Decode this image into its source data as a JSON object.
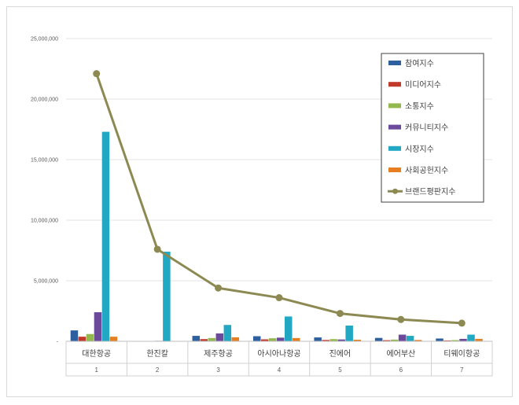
{
  "chart_data": {
    "type": "bar",
    "title": "",
    "xlabel": "",
    "ylabel": "",
    "ylim": [
      0,
      25000000
    ],
    "yticks": [
      0,
      5000000,
      10000000,
      15000000,
      20000000,
      25000000
    ],
    "ytick_labels": [
      "-",
      "5,000,000",
      "10,000,000",
      "15,000,000",
      "20,000,000",
      "25,000,000"
    ],
    "grid": true,
    "legend_position": "top-right",
    "categories": [
      "대한항공",
      "한진칼",
      "제주항공",
      "아시아나항공",
      "진에어",
      "에어부산",
      "티웨이항공"
    ],
    "category_numbers": [
      "1",
      "2",
      "3",
      "4",
      "5",
      "6",
      "7"
    ],
    "series": [
      {
        "name": "참여지수",
        "color": "#2e5f9e",
        "values": [
          900000,
          30000,
          450000,
          420000,
          320000,
          280000,
          230000
        ]
      },
      {
        "name": "미디어지수",
        "color": "#c0392b",
        "values": [
          380000,
          20000,
          180000,
          160000,
          110000,
          90000,
          70000
        ]
      },
      {
        "name": "소통지수",
        "color": "#92b84e",
        "values": [
          600000,
          15000,
          270000,
          250000,
          180000,
          140000,
          100000
        ]
      },
      {
        "name": "커뮤니티지수",
        "color": "#6b4a9b",
        "values": [
          2400000,
          40000,
          650000,
          300000,
          150000,
          550000,
          200000
        ]
      },
      {
        "name": "시장지수",
        "color": "#23a8c3",
        "values": [
          17300000,
          7400000,
          1350000,
          2050000,
          1300000,
          450000,
          550000
        ]
      },
      {
        "name": "사회공헌지수",
        "color": "#e67e22",
        "values": [
          380000,
          20000,
          330000,
          270000,
          130000,
          110000,
          200000
        ]
      }
    ],
    "line_series": {
      "name": "브랜드평판지수",
      "color": "#8c8a52",
      "values": [
        22100000,
        7600000,
        4400000,
        3600000,
        2300000,
        1800000,
        1500000
      ]
    }
  }
}
